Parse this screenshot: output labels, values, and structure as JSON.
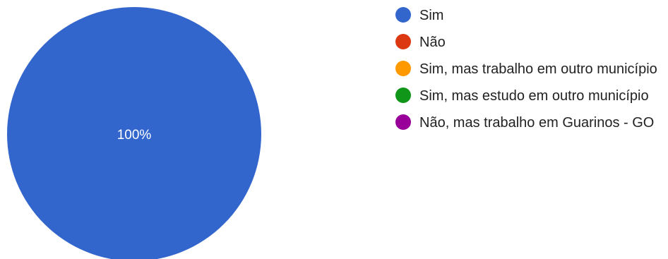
{
  "chart_data": {
    "type": "pie",
    "categories": [
      "Sim",
      "Não",
      "Sim, mas trabalho em outro município",
      "Sim, mas estudo em outro município",
      "Não, mas trabalho em Guarinos - GO"
    ],
    "values": [
      100,
      0,
      0,
      0,
      0
    ],
    "colors": [
      "#3366cc",
      "#dc3912",
      "#ff9900",
      "#109618",
      "#990099"
    ],
    "data_labels": [
      "100%"
    ],
    "legend_position": "right"
  }
}
